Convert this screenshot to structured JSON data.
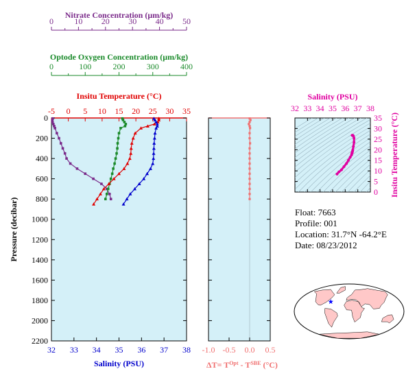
{
  "info": {
    "float_label": "Float:",
    "float_value": "7663",
    "profile_label": "Profile:",
    "profile_value": "001",
    "location_label": "Location:",
    "location_value": "31.7°N  -64.2°E",
    "date_label": "Date:",
    "date_value": "08/23/2012"
  },
  "colors": {
    "nitrate": "#7a2a8a",
    "oxygen": "#1a8a2a",
    "temperature": "#e00000",
    "salinity": "#0000cc",
    "delta": "#f07070",
    "ts": "#e000a0",
    "panel_bg": "#d4f0f8",
    "pressure": "#000000"
  },
  "chart_data": [
    {
      "type": "line",
      "panel": "main",
      "ylabel": "Pressure (decibar)",
      "ylim": [
        2200,
        0
      ],
      "y_ticks": [
        0,
        200,
        400,
        600,
        800,
        1000,
        1200,
        1400,
        1600,
        1800,
        2000,
        2200
      ],
      "axes": {
        "nitrate": {
          "label": "Nitrate Concentration (µm/kg)",
          "lim": [
            0,
            50
          ],
          "ticks": [
            0,
            10,
            20,
            30,
            40,
            50
          ]
        },
        "oxygen": {
          "label": "Optode Oxygen Concentration (µm/kg)",
          "lim": [
            0,
            400
          ],
          "ticks": [
            0,
            100,
            200,
            300,
            400
          ]
        },
        "temperature": {
          "label": "Insitu Temperature (°C)",
          "lim": [
            -5,
            35
          ],
          "ticks": [
            -5,
            0,
            5,
            10,
            15,
            20,
            25,
            30,
            35
          ]
        },
        "salinity": {
          "label": "Salinity (PSU)",
          "lim": [
            32,
            38
          ],
          "ticks": [
            32,
            33,
            34,
            35,
            36,
            37,
            38
          ]
        }
      },
      "series": [
        {
          "axis": "nitrate",
          "points": [
            [
              0.5,
              5
            ],
            [
              0.3,
              20
            ],
            [
              0.4,
              40
            ],
            [
              0.7,
              60
            ],
            [
              1.0,
              80
            ],
            [
              1.3,
              100
            ],
            [
              2.0,
              150
            ],
            [
              2.8,
              200
            ],
            [
              3.5,
              250
            ],
            [
              4.2,
              300
            ],
            [
              5.0,
              350
            ],
            [
              5.6,
              400
            ],
            [
              7.0,
              450
            ],
            [
              9.5,
              500
            ],
            [
              12.5,
              550
            ],
            [
              15.5,
              600
            ],
            [
              18.5,
              650
            ],
            [
              20.5,
              700
            ],
            [
              21.5,
              750
            ],
            [
              22.0,
              800
            ]
          ]
        },
        {
          "axis": "oxygen",
          "points": [
            [
              210,
              5
            ],
            [
              212,
              20
            ],
            [
              216,
              40
            ],
            [
              220,
              60
            ],
            [
              218,
              80
            ],
            [
              205,
              100
            ],
            [
              200,
              150
            ],
            [
              198,
              200
            ],
            [
              196,
              250
            ],
            [
              195,
              300
            ],
            [
              193,
              350
            ],
            [
              190,
              400
            ],
            [
              187,
              450
            ],
            [
              183,
              500
            ],
            [
              180,
              550
            ],
            [
              176,
              600
            ],
            [
              172,
              650
            ],
            [
              168,
              700
            ],
            [
              164,
              750
            ],
            [
              160,
              800
            ]
          ]
        },
        {
          "axis": "temperature",
          "points": [
            [
              26.8,
              5
            ],
            [
              26.8,
              20
            ],
            [
              26.5,
              40
            ],
            [
              25.5,
              60
            ],
            [
              23.5,
              80
            ],
            [
              21.5,
              100
            ],
            [
              19.8,
              150
            ],
            [
              19.2,
              200
            ],
            [
              18.8,
              250
            ],
            [
              18.6,
              300
            ],
            [
              18.5,
              350
            ],
            [
              18.2,
              400
            ],
            [
              17.5,
              450
            ],
            [
              16.5,
              500
            ],
            [
              15.0,
              550
            ],
            [
              13.5,
              600
            ],
            [
              12.0,
              650
            ],
            [
              10.5,
              700
            ],
            [
              9.5,
              750
            ],
            [
              8.5,
              800
            ],
            [
              7.5,
              850
            ]
          ]
        },
        {
          "axis": "salinity",
          "points": [
            [
              36.55,
              5
            ],
            [
              36.6,
              20
            ],
            [
              36.65,
              40
            ],
            [
              36.7,
              60
            ],
            [
              36.7,
              80
            ],
            [
              36.65,
              100
            ],
            [
              36.6,
              150
            ],
            [
              36.58,
              200
            ],
            [
              36.56,
              250
            ],
            [
              36.55,
              300
            ],
            [
              36.54,
              350
            ],
            [
              36.53,
              400
            ],
            [
              36.5,
              450
            ],
            [
              36.4,
              500
            ],
            [
              36.25,
              550
            ],
            [
              36.1,
              600
            ],
            [
              35.9,
              650
            ],
            [
              35.7,
              700
            ],
            [
              35.5,
              750
            ],
            [
              35.35,
              800
            ],
            [
              35.2,
              850
            ]
          ]
        }
      ]
    },
    {
      "type": "scatter",
      "panel": "delta",
      "xlabel": "ΔT= T",
      "xlabel_sup1": "Opt",
      "xlabel_mid": " - T",
      "xlabel_sup2": "SBE",
      "xlabel_unit": " (°C)",
      "xlim": [
        -1.0,
        0.5
      ],
      "x_ticks": [
        "-1.0",
        "-0.5",
        "0.0",
        "0.5"
      ],
      "ylim": [
        2200,
        0
      ],
      "points": [
        [
          0.0,
          5
        ],
        [
          0.02,
          20
        ],
        [
          0.0,
          40
        ],
        [
          -0.02,
          60
        ],
        [
          0.0,
          80
        ],
        [
          0.01,
          100
        ],
        [
          0.0,
          150
        ],
        [
          0.0,
          200
        ],
        [
          0.01,
          250
        ],
        [
          0.0,
          300
        ],
        [
          0.0,
          350
        ],
        [
          0.0,
          400
        ],
        [
          0.0,
          450
        ],
        [
          0.0,
          500
        ],
        [
          0.0,
          550
        ],
        [
          0.0,
          600
        ],
        [
          0.0,
          650
        ],
        [
          0.0,
          700
        ],
        [
          0.0,
          750
        ],
        [
          0.0,
          800
        ]
      ]
    },
    {
      "type": "scatter",
      "panel": "ts",
      "xlabel": "Salinity (PSU)",
      "ylabel": "Insitu Temperature (°C)",
      "xlim": [
        32,
        38
      ],
      "ylim": [
        0,
        35
      ],
      "x_ticks": [
        32,
        33,
        34,
        35,
        36,
        37,
        38
      ],
      "y_ticks": [
        0,
        5,
        10,
        15,
        20,
        25,
        30,
        35
      ],
      "points": [
        [
          36.55,
          26.8
        ],
        [
          36.6,
          26.8
        ],
        [
          36.65,
          26.5
        ],
        [
          36.7,
          25.5
        ],
        [
          36.7,
          23.5
        ],
        [
          36.65,
          21.5
        ],
        [
          36.6,
          19.8
        ],
        [
          36.58,
          19.2
        ],
        [
          36.56,
          18.8
        ],
        [
          36.55,
          18.6
        ],
        [
          36.54,
          18.5
        ],
        [
          36.53,
          18.2
        ],
        [
          36.5,
          17.5
        ],
        [
          36.4,
          16.5
        ],
        [
          36.25,
          15.0
        ],
        [
          36.1,
          13.5
        ],
        [
          35.9,
          12.0
        ],
        [
          35.7,
          10.5
        ],
        [
          35.5,
          9.5
        ],
        [
          35.35,
          8.5
        ]
      ]
    },
    {
      "type": "map",
      "panel": "globe",
      "marker": {
        "lat": 31.7,
        "lon": -64.2
      }
    }
  ]
}
